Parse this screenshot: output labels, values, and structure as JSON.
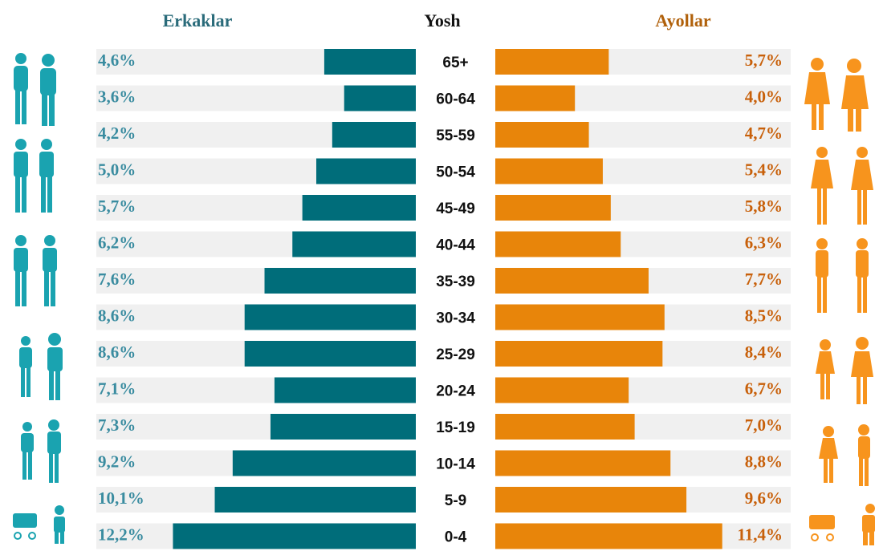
{
  "chart_data": {
    "type": "pyramid",
    "category_label": "Yosh",
    "categories": [
      "65+",
      "60-64",
      "55-59",
      "50-54",
      "45-49",
      "40-44",
      "35-39",
      "30-34",
      "25-29",
      "20-24",
      "15-19",
      "10-14",
      "5-9",
      "0-4"
    ],
    "series": [
      {
        "name": "Erkaklar",
        "color": "#006d7a",
        "label_color": "#3a8ca0",
        "values": [
          4.6,
          3.6,
          4.2,
          5.0,
          5.7,
          6.2,
          7.6,
          8.6,
          8.6,
          7.1,
          7.3,
          9.2,
          10.1,
          12.2
        ],
        "value_labels": [
          "4,6%",
          "3,6%",
          "4,2%",
          "5,0%",
          "5,7%",
          "6,2%",
          "7,6%",
          "8,6%",
          "8,6%",
          "7,1%",
          "7,3%",
          "9,2%",
          "10,1%",
          "12,2%"
        ]
      },
      {
        "name": "Ayollar",
        "color": "#e8850a",
        "label_color": "#c8600a",
        "values": [
          5.7,
          4.0,
          4.7,
          5.4,
          5.8,
          6.3,
          7.7,
          8.5,
          8.4,
          6.7,
          7.0,
          8.8,
          9.6,
          11.4
        ],
        "value_labels": [
          "5,7%",
          "4,0%",
          "4,7%",
          "5,4%",
          "5,8%",
          "6,3%",
          "7,7%",
          "8,5%",
          "8,4%",
          "6,7%",
          "7,0%",
          "8,8%",
          "9,6%",
          "11,4%"
        ]
      }
    ]
  }
}
